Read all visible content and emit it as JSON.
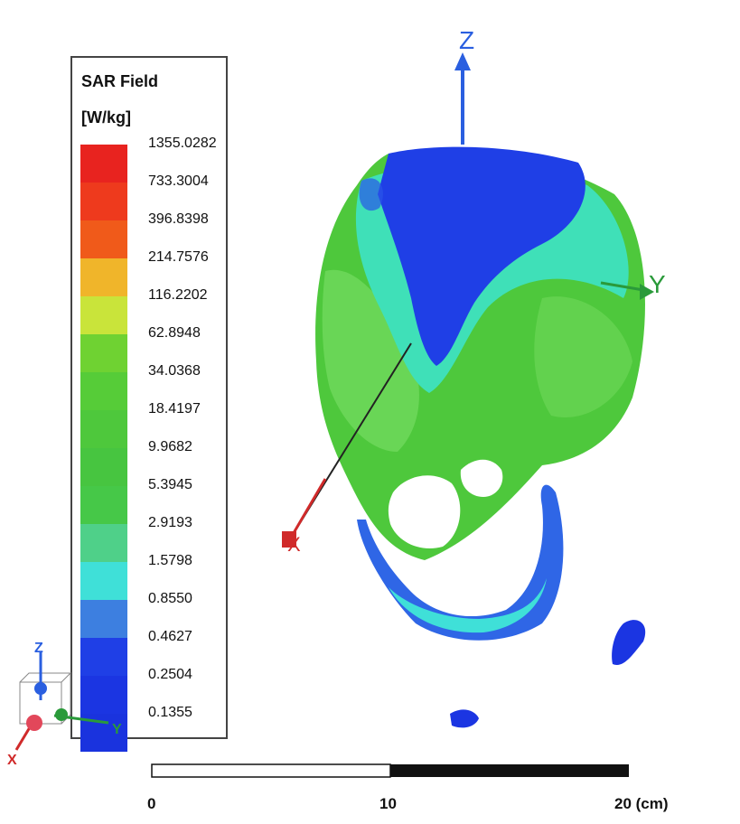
{
  "legend": {
    "title_line1": "SAR Field",
    "title_line2": "[W/kg]",
    "levels": [
      {
        "label": "1355.0282",
        "color": "#e8231f"
      },
      {
        "label": "733.3004",
        "color": "#ee3a1d"
      },
      {
        "label": "396.8398",
        "color": "#f05a1a"
      },
      {
        "label": "214.7576",
        "color": "#f0b52a"
      },
      {
        "label": "116.2202",
        "color": "#c9e43a"
      },
      {
        "label": "62.8948",
        "color": "#6fd232"
      },
      {
        "label": "34.0368",
        "color": "#56cc38"
      },
      {
        "label": "18.4197",
        "color": "#4ec83c"
      },
      {
        "label": "9.9682",
        "color": "#47c540"
      },
      {
        "label": "5.3945",
        "color": "#46c848"
      },
      {
        "label": "2.9193",
        "color": "#4fd089"
      },
      {
        "label": "1.5798",
        "color": "#3fe0d8"
      },
      {
        "label": "0.8550",
        "color": "#3d7fe0"
      },
      {
        "label": "0.4627",
        "color": "#1f3fe6"
      },
      {
        "label": "0.2504",
        "color": "#1b35e2"
      },
      {
        "label": "0.1355",
        "color": "#1a33de"
      }
    ]
  },
  "axes": {
    "z": "Z",
    "y": "Y",
    "x": "X"
  },
  "mini_axes": {
    "z": "Z",
    "y": "Y",
    "x": "X"
  },
  "scale_bar": {
    "label_start": "0",
    "label_mid": "10",
    "label_end": "20 (cm)"
  }
}
